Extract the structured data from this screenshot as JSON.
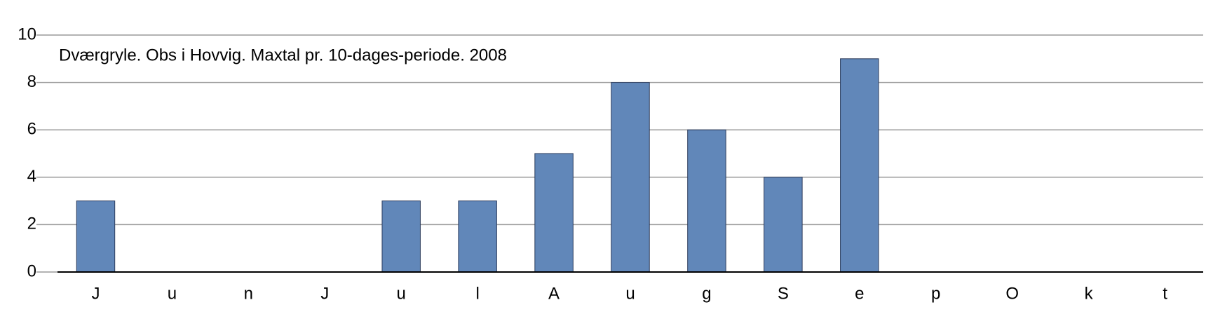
{
  "chart_data": {
    "type": "bar",
    "title": "Dværgryle. Obs i Hovvig. Maxtal pr. 10-dages-periode. 2008",
    "categories": [
      "J",
      "u",
      "n",
      "J",
      "u",
      "l",
      "A",
      "u",
      "g",
      "S",
      "e",
      "p",
      "O",
      "k",
      "t"
    ],
    "values": [
      3,
      0,
      0,
      0,
      3,
      3,
      5,
      8,
      6,
      4,
      9,
      0,
      0,
      0,
      0
    ],
    "color": "#6187b9",
    "ylim": [
      0,
      10
    ],
    "yticks": [
      0,
      2,
      4,
      6,
      8,
      10
    ],
    "grid": true
  }
}
